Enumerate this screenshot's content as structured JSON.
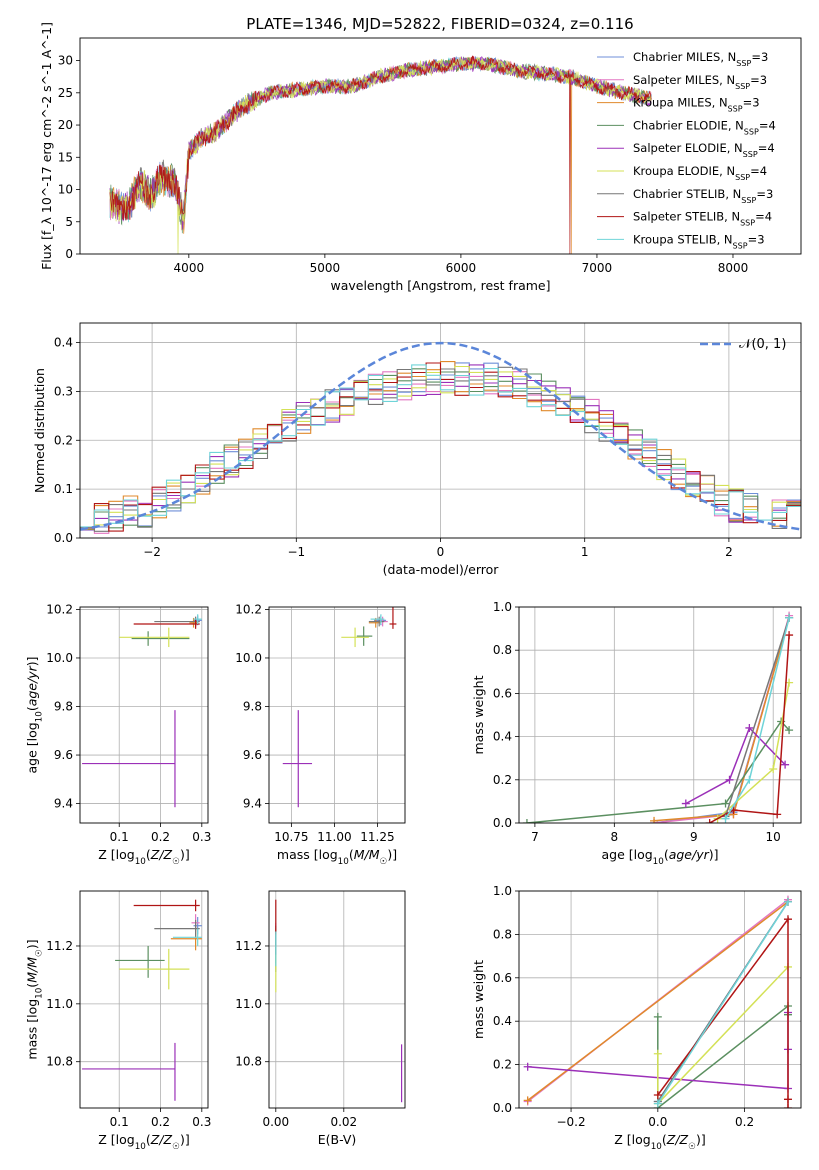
{
  "figure": {
    "title": "PLATE=1346, MJD=52822, FIBERID=0324, z=0.116"
  },
  "colors": {
    "Chabrier MILES": "#6f8fd8",
    "Salpeter MILES": "#e377c2",
    "Kroupa MILES": "#e08a2c",
    "Chabrier ELODIE": "#5b8f60",
    "Salpeter ELODIE": "#9b30b8",
    "Kroupa ELODIE": "#d4e157",
    "Chabrier STELIB": "#777777",
    "Salpeter STELIB": "#b01515",
    "Kroupa STELIB": "#6fd4d8"
  },
  "chart_data": [
    {
      "id": "spectrum",
      "type": "line",
      "xlabel": "wavelength [Angstrom, rest frame]",
      "ylabel": "Flux [f_λ 10^-17 erg cm^-2 s^-1 A^-1]",
      "xlim": [
        3200,
        8500
      ],
      "ylim": [
        0,
        33.5
      ],
      "xticks": [
        4000,
        5000,
        6000,
        7000,
        8000
      ],
      "yticks": [
        0,
        5,
        10,
        15,
        20,
        25,
        30
      ],
      "grid": false,
      "legend_position": "right",
      "legend": [
        {
          "label": "Chabrier MILES",
          "nssp": "3"
        },
        {
          "label": "Salpeter MILES",
          "nssp": "3"
        },
        {
          "label": "Kroupa MILES",
          "nssp": "3"
        },
        {
          "label": "Chabrier ELODIE",
          "nssp": "4"
        },
        {
          "label": "Salpeter ELODIE",
          "nssp": "4"
        },
        {
          "label": "Kroupa ELODIE",
          "nssp": "4"
        },
        {
          "label": "Chabrier STELIB",
          "nssp": "3"
        },
        {
          "label": "Salpeter STELIB",
          "nssp": "4"
        },
        {
          "label": "Kroupa STELIB",
          "nssp": "3"
        }
      ],
      "continuum": {
        "x": [
          3420,
          3550,
          3640,
          3720,
          3800,
          3900,
          3960,
          4000,
          4100,
          4200,
          4300,
          4400,
          4600,
          4800,
          5000,
          5200,
          5400,
          5600,
          5800,
          6000,
          6200,
          6400,
          6600,
          6800,
          7000,
          7200,
          7400
        ],
        "y": [
          8,
          7,
          11,
          9,
          12,
          11,
          5,
          16,
          18,
          19,
          21,
          23,
          25,
          25.5,
          26,
          26,
          27.5,
          28.5,
          29,
          29.5,
          29.5,
          28.5,
          28,
          27.5,
          26,
          25,
          24
        ]
      },
      "dropouts": [
        {
          "series": "Kroupa ELODIE",
          "x": 3920
        },
        {
          "series": "Salpeter STELIB",
          "x": 6800
        },
        {
          "series": "Kroupa MILES",
          "x": 6810
        },
        {
          "series": "Salpeter STELIB",
          "x": 7410
        }
      ]
    },
    {
      "id": "residuals",
      "type": "bar",
      "style": "step-histogram",
      "xlabel": "(data-model)/error",
      "ylabel": "Normed distribution",
      "xlim": [
        -2.5,
        2.5
      ],
      "ylim": [
        0,
        0.44
      ],
      "xticks": [
        -2,
        -1,
        0,
        1,
        2
      ],
      "yticks": [
        0.0,
        0.1,
        0.2,
        0.3,
        0.4
      ],
      "grid": true,
      "bin_width": 0.1,
      "legend": "𝒩(0, 1)",
      "legend_position": "top-right",
      "mean_profile": {
        "x": [
          -2.5,
          -2.0,
          -1.5,
          -1.0,
          -0.5,
          0.0,
          0.5,
          1.0,
          1.5,
          2.0,
          2.5
        ],
        "y": [
          0.03,
          0.06,
          0.15,
          0.24,
          0.3,
          0.33,
          0.32,
          0.26,
          0.16,
          0.07,
          0.04
        ]
      },
      "reference_curve": "normal pdf, mean 0, sigma 1"
    },
    {
      "id": "age-metallicity",
      "type": "scatter",
      "xlabel": "Z [log10(Z/Z☉)]",
      "ylabel": "age  [log10(age/yr)]",
      "xlim": [
        0.005,
        0.315
      ],
      "ylim": [
        9.32,
        10.21
      ],
      "xticks": [
        0.1,
        0.2,
        0.3
      ],
      "yticks": [
        9.4,
        9.6,
        9.8,
        10.0,
        10.2
      ],
      "grid": true,
      "points": [
        {
          "series": "Chabrier MILES",
          "x": 0.29,
          "y": 10.155,
          "xerr": [
            0.01,
            0.01
          ],
          "yerr": [
            0.02,
            0.02
          ]
        },
        {
          "series": "Salpeter MILES",
          "x": 0.285,
          "y": 10.15,
          "xerr": [
            0.01,
            0.01
          ],
          "yerr": [
            0.02,
            0.02
          ]
        },
        {
          "series": "Kroupa MILES",
          "x": 0.28,
          "y": 10.145,
          "xerr": [
            0.01,
            0.01
          ],
          "yerr": [
            0.02,
            0.02
          ]
        },
        {
          "series": "Chabrier ELODIE",
          "x": 0.17,
          "y": 10.08,
          "xerr": [
            0.04,
            0.1
          ],
          "yerr": [
            0.03,
            0.03
          ]
        },
        {
          "series": "Salpeter ELODIE",
          "x": 0.235,
          "y": 9.565,
          "xerr": [
            0.225,
            0.0
          ],
          "yerr": [
            0.18,
            0.22
          ]
        },
        {
          "series": "Kroupa ELODIE",
          "x": 0.22,
          "y": 10.085,
          "xerr": [
            0.12,
            0.05
          ],
          "yerr": [
            0.04,
            0.04
          ]
        },
        {
          "series": "Chabrier STELIB",
          "x": 0.285,
          "y": 10.15,
          "xerr": [
            0.1,
            0.01
          ],
          "yerr": [
            0.02,
            0.02
          ]
        },
        {
          "series": "Salpeter STELIB",
          "x": 0.285,
          "y": 10.14,
          "xerr": [
            0.15,
            0.01
          ],
          "yerr": [
            0.02,
            0.02
          ]
        },
        {
          "series": "Kroupa STELIB",
          "x": 0.29,
          "y": 10.16,
          "xerr": [
            0.01,
            0.01
          ],
          "yerr": [
            0.02,
            0.02
          ]
        }
      ]
    },
    {
      "id": "age-mass",
      "type": "scatter",
      "xlabel": "mass [log10(M/M☉)]",
      "ylabel": "",
      "xlim": [
        10.62,
        11.41
      ],
      "ylim": [
        9.32,
        10.21
      ],
      "xticks": [
        10.75,
        11.0,
        11.25
      ],
      "yticks": [
        9.4,
        9.6,
        9.8,
        10.0,
        10.2
      ],
      "grid": true,
      "points": [
        {
          "series": "Chabrier MILES",
          "x": 11.27,
          "y": 10.155,
          "xerr": [
            0.04,
            0.03
          ],
          "yerr": [
            0.02,
            0.02
          ]
        },
        {
          "series": "Salpeter MILES",
          "x": 11.28,
          "y": 10.15,
          "xerr": [
            0.04,
            0.03
          ],
          "yerr": [
            0.02,
            0.02
          ]
        },
        {
          "series": "Kroupa MILES",
          "x": 11.24,
          "y": 10.145,
          "xerr": [
            0.04,
            0.03
          ],
          "yerr": [
            0.02,
            0.02
          ]
        },
        {
          "series": "Chabrier ELODIE",
          "x": 11.17,
          "y": 10.09,
          "xerr": [
            0.04,
            0.05
          ],
          "yerr": [
            0.04,
            0.04
          ]
        },
        {
          "series": "Salpeter ELODIE",
          "x": 10.79,
          "y": 9.565,
          "xerr": [
            0.09,
            0.08
          ],
          "yerr": [
            0.18,
            0.22
          ]
        },
        {
          "series": "Kroupa ELODIE",
          "x": 11.12,
          "y": 10.085,
          "xerr": [
            0.08,
            0.08
          ],
          "yerr": [
            0.04,
            0.04
          ]
        },
        {
          "series": "Chabrier STELIB",
          "x": 11.26,
          "y": 10.15,
          "xerr": [
            0.06,
            0.03
          ],
          "yerr": [
            0.02,
            0.02
          ]
        },
        {
          "series": "Salpeter STELIB",
          "x": 11.34,
          "y": 10.14,
          "xerr": [
            0.02,
            0.02
          ],
          "yerr": [
            0.02,
            0.07
          ]
        },
        {
          "series": "Kroupa STELIB",
          "x": 11.27,
          "y": 10.16,
          "xerr": [
            0.06,
            0.02
          ],
          "yerr": [
            0.02,
            0.02
          ]
        }
      ]
    },
    {
      "id": "mass-weight-age",
      "type": "line",
      "xlabel": "age  [log10(age/yr)]",
      "ylabel": "mass weight",
      "xlim": [
        6.8,
        10.35
      ],
      "ylim": [
        0,
        1.0
      ],
      "xticks": [
        7,
        8,
        9,
        10
      ],
      "yticks": [
        0.0,
        0.2,
        0.4,
        0.6,
        0.8,
        1.0
      ],
      "grid": true,
      "series": [
        {
          "name": "Chabrier MILES",
          "x": [
            8.5,
            9.5,
            10.2
          ],
          "y": [
            0.0,
            0.05,
            0.95
          ]
        },
        {
          "name": "Salpeter MILES",
          "x": [
            8.5,
            9.5,
            10.2
          ],
          "y": [
            0.0,
            0.04,
            0.96
          ]
        },
        {
          "name": "Kroupa MILES",
          "x": [
            8.5,
            9.5,
            10.2
          ],
          "y": [
            0.01,
            0.04,
            0.95
          ]
        },
        {
          "name": "Chabrier ELODIE",
          "x": [
            6.9,
            9.4,
            10.1,
            10.2
          ],
          "y": [
            0.0,
            0.09,
            0.47,
            0.43
          ]
        },
        {
          "name": "Salpeter ELODIE",
          "x": [
            8.9,
            9.45,
            9.7,
            10.15
          ],
          "y": [
            0.09,
            0.2,
            0.44,
            0.27
          ]
        },
        {
          "name": "Kroupa ELODIE",
          "x": [
            9.3,
            10.0,
            10.2
          ],
          "y": [
            0.02,
            0.25,
            0.65
          ]
        },
        {
          "name": "Chabrier STELIB",
          "x": [
            9.4,
            10.2
          ],
          "y": [
            0.03,
            0.95
          ]
        },
        {
          "name": "Salpeter STELIB",
          "x": [
            9.2,
            9.5,
            10.05,
            10.2
          ],
          "y": [
            0.0,
            0.06,
            0.04,
            0.87
          ]
        },
        {
          "name": "Kroupa STELIB",
          "x": [
            9.4,
            9.7,
            10.2
          ],
          "y": [
            0.02,
            0.2,
            0.95
          ]
        }
      ]
    },
    {
      "id": "mass-metallicity",
      "type": "scatter",
      "xlabel": "Z [log10(Z/Z☉)]",
      "ylabel": "mass [log10(M/M☉)]",
      "xlim": [
        0.005,
        0.315
      ],
      "ylim": [
        10.64,
        11.39
      ],
      "xticks": [
        0.1,
        0.2,
        0.3
      ],
      "yticks": [
        10.8,
        11.0,
        11.2
      ],
      "grid": true,
      "points": [
        {
          "series": "Chabrier MILES",
          "x": 0.29,
          "y": 11.27,
          "xerr": [
            0.01,
            0.01
          ],
          "yerr": [
            0.03,
            0.03
          ]
        },
        {
          "series": "Salpeter MILES",
          "x": 0.285,
          "y": 11.28,
          "xerr": [
            0.01,
            0.01
          ],
          "yerr": [
            0.03,
            0.03
          ]
        },
        {
          "series": "Kroupa MILES",
          "x": 0.285,
          "y": 11.225,
          "xerr": [
            0.06,
            0.015
          ],
          "yerr": [
            0.04,
            0.05
          ]
        },
        {
          "series": "Chabrier ELODIE",
          "x": 0.17,
          "y": 11.15,
          "xerr": [
            0.08,
            0.04
          ],
          "yerr": [
            0.06,
            0.05
          ]
        },
        {
          "series": "Salpeter ELODIE",
          "x": 0.235,
          "y": 10.775,
          "xerr": [
            0.225,
            0.0
          ],
          "yerr": [
            0.11,
            0.09
          ]
        },
        {
          "series": "Kroupa ELODIE",
          "x": 0.22,
          "y": 11.12,
          "xerr": [
            0.12,
            0.05
          ],
          "yerr": [
            0.07,
            0.07
          ]
        },
        {
          "series": "Chabrier STELIB",
          "x": 0.285,
          "y": 11.26,
          "xerr": [
            0.1,
            0.01
          ],
          "yerr": [
            0.03,
            0.03
          ]
        },
        {
          "series": "Salpeter STELIB",
          "x": 0.285,
          "y": 11.34,
          "xerr": [
            0.15,
            0.01
          ],
          "yerr": [
            0.02,
            0.02
          ]
        },
        {
          "series": "Kroupa STELIB",
          "x": 0.29,
          "y": 11.23,
          "xerr": [
            0.06,
            0.01
          ],
          "yerr": [
            0.03,
            0.03
          ]
        }
      ]
    },
    {
      "id": "mass-ebv",
      "type": "scatter",
      "xlabel": "E(B-V)",
      "ylabel": "",
      "xlim": [
        -0.002,
        0.038
      ],
      "ylim": [
        10.64,
        11.39
      ],
      "xticks": [
        0.0,
        0.02
      ],
      "yticks": [
        10.8,
        11.0,
        11.2
      ],
      "grid": true,
      "points": [
        {
          "series": "Chabrier MILES",
          "x": 0.0,
          "y": 11.2,
          "xerr": [
            0,
            0
          ],
          "yerr": [
            0.06,
            0.06
          ]
        },
        {
          "series": "Salpeter MILES",
          "x": 0.0,
          "y": 11.22,
          "xerr": [
            0,
            0
          ],
          "yerr": [
            0.06,
            0.06
          ]
        },
        {
          "series": "Kroupa MILES",
          "x": 0.0,
          "y": 11.2,
          "xerr": [
            0,
            0
          ],
          "yerr": [
            0.06,
            0.06
          ]
        },
        {
          "series": "Chabrier ELODIE",
          "x": 0.0,
          "y": 11.18,
          "xerr": [
            0,
            0
          ],
          "yerr": [
            0.07,
            0.07
          ]
        },
        {
          "series": "Salpeter ELODIE",
          "x": 0.037,
          "y": 10.76,
          "xerr": [
            0,
            0
          ],
          "yerr": [
            0.1,
            0.1
          ]
        },
        {
          "series": "Kroupa ELODIE",
          "x": 0.0,
          "y": 11.12,
          "xerr": [
            0,
            0
          ],
          "yerr": [
            0.08,
            0.08
          ]
        },
        {
          "series": "Chabrier STELIB",
          "x": 0.0,
          "y": 11.22,
          "xerr": [
            0,
            0
          ],
          "yerr": [
            0.05,
            0.05
          ]
        },
        {
          "series": "Salpeter STELIB",
          "x": 0.0,
          "y": 11.3,
          "xerr": [
            0,
            0
          ],
          "yerr": [
            0.06,
            0.06
          ]
        },
        {
          "series": "Kroupa STELIB",
          "x": 0.0,
          "y": 11.19,
          "xerr": [
            0,
            0
          ],
          "yerr": [
            0.06,
            0.06
          ]
        }
      ]
    },
    {
      "id": "mass-weight-metallicity",
      "type": "line",
      "xlabel": "Z [log10(Z/Z☉)]",
      "ylabel": "mass weight",
      "xlim": [
        -0.32,
        0.33
      ],
      "ylim": [
        0,
        1.0
      ],
      "xticks": [
        -0.2,
        0.0,
        0.2
      ],
      "yticks": [
        0.0,
        0.2,
        0.4,
        0.6,
        0.8,
        1.0
      ],
      "grid": true,
      "series": [
        {
          "name": "Chabrier MILES",
          "x": [
            0.0,
            0.3
          ],
          "y": [
            0.03,
            0.95
          ]
        },
        {
          "name": "Salpeter MILES",
          "x": [
            -0.3,
            0.3
          ],
          "y": [
            0.03,
            0.96
          ]
        },
        {
          "name": "Kroupa MILES",
          "x": [
            -0.3,
            0.3
          ],
          "y": [
            0.035,
            0.95
          ]
        },
        {
          "name": "Chabrier ELODIE",
          "x": [
            0.0,
            0.0,
            0.3,
            0.3
          ],
          "y": [
            0.42,
            0.0,
            0.47,
            0.43
          ]
        },
        {
          "name": "Salpeter ELODIE",
          "x": [
            -0.3,
            0.3,
            0.3,
            0.3
          ],
          "y": [
            0.19,
            0.09,
            0.27,
            0.44
          ]
        },
        {
          "name": "Kroupa ELODIE",
          "x": [
            0.0,
            0.0,
            0.3
          ],
          "y": [
            0.25,
            0.02,
            0.65
          ]
        },
        {
          "name": "Chabrier STELIB",
          "x": [
            0.0,
            0.3
          ],
          "y": [
            0.03,
            0.95
          ]
        },
        {
          "name": "Salpeter STELIB",
          "x": [
            0.0,
            0.3,
            0.3,
            0.3
          ],
          "y": [
            0.06,
            0.87,
            0.04,
            0.0
          ]
        },
        {
          "name": "Kroupa STELIB",
          "x": [
            0.0,
            0.3
          ],
          "y": [
            0.02,
            0.95
          ]
        }
      ]
    }
  ]
}
